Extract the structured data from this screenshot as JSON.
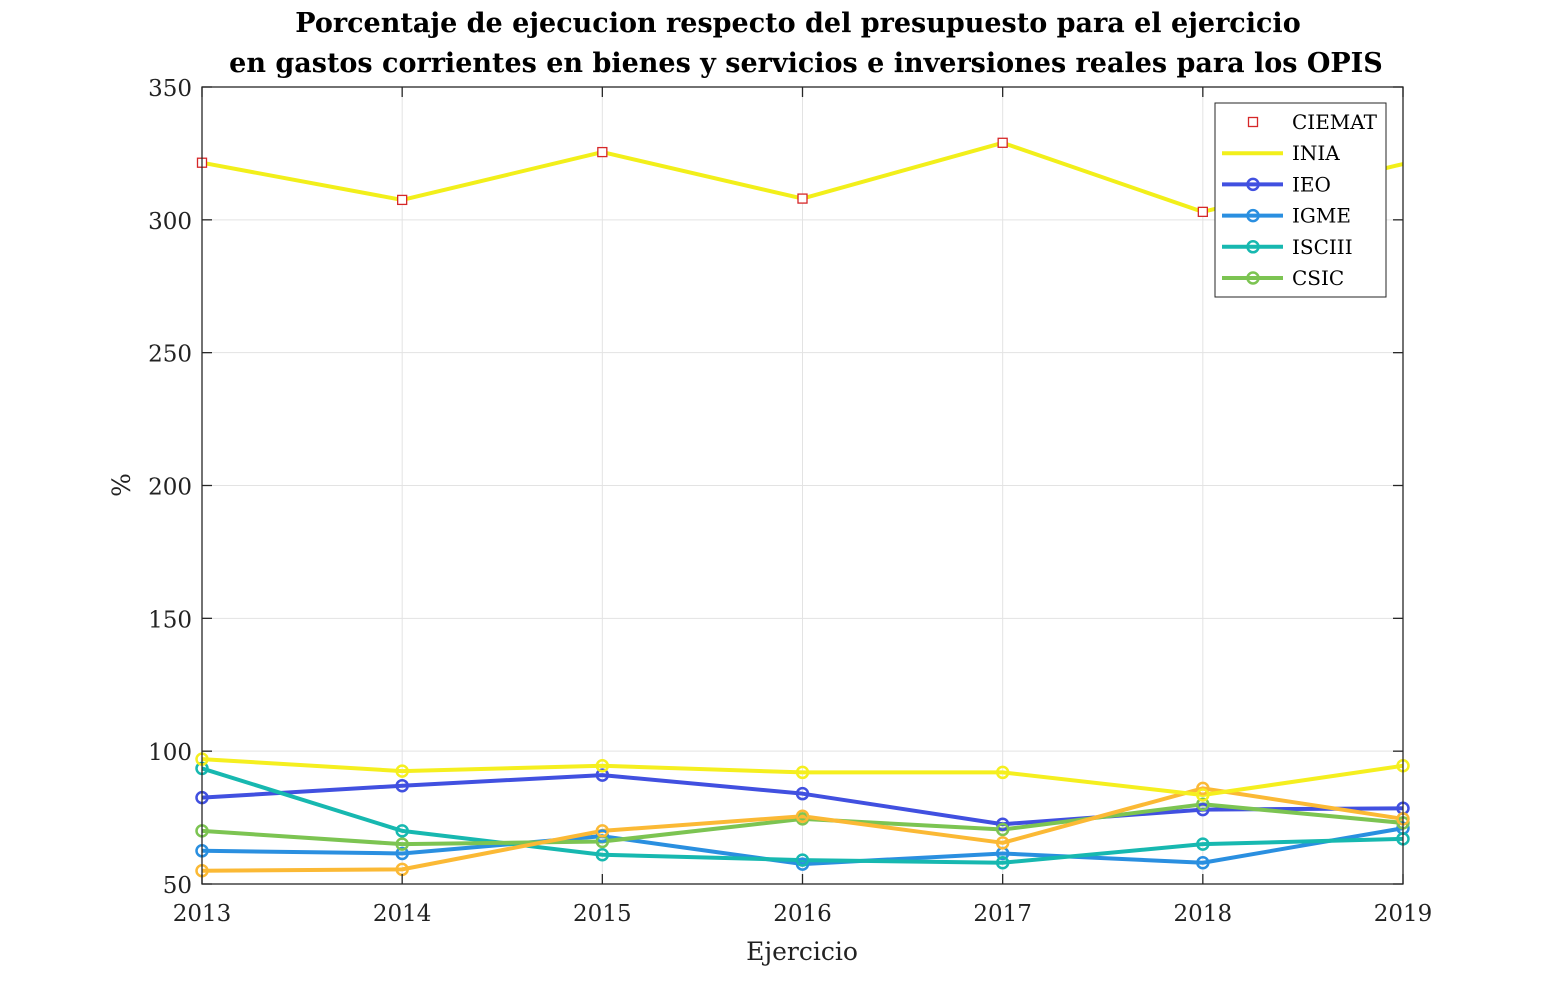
{
  "chart_data": {
    "type": "line",
    "title": [
      "Porcentaje de ejecucion respecto del presupuesto para el ejercicio",
      "en gastos corrientes en bienes y servicios e inversiones reales para los OPIS"
    ],
    "xlabel": "Ejercicio",
    "ylabel": "%",
    "x": [
      2013,
      2014,
      2015,
      2016,
      2017,
      2018,
      2019
    ],
    "xlim": [
      2013,
      2019
    ],
    "ylim": [
      50,
      350
    ],
    "yticks": [
      50,
      100,
      150,
      200,
      250,
      300,
      350
    ],
    "grid": true,
    "legend_position": "top-right",
    "series": [
      {
        "name": "CIEMAT",
        "color": "#d62728",
        "line": false,
        "marker": "square",
        "values": [
          321.5,
          307.5,
          325.5,
          308,
          329,
          303,
          null
        ],
        "legend": true
      },
      {
        "name": "INIA",
        "color": "#f2ef1a",
        "line": true,
        "marker": "none",
        "values": [
          321.5,
          307.5,
          325.5,
          308,
          329,
          303,
          321
        ],
        "legend": true
      },
      {
        "name": "IEO",
        "color": "#4150e0",
        "line": true,
        "marker": "circle",
        "values": [
          82.5,
          87,
          91,
          84,
          72.5,
          78,
          78.5
        ],
        "legend": true
      },
      {
        "name": "IGME",
        "color": "#2a8fe0",
        "line": true,
        "marker": "circle",
        "values": [
          62.5,
          61.5,
          68,
          57.5,
          61.5,
          58,
          71
        ],
        "legend": true
      },
      {
        "name": "ISCIII",
        "color": "#17b8b0",
        "line": true,
        "marker": "circle",
        "values": [
          93.5,
          70,
          61,
          59,
          58,
          65,
          67
        ],
        "legend": true
      },
      {
        "name": "CSIC",
        "color": "#7cc452",
        "line": true,
        "marker": "circle",
        "values": [
          70,
          65,
          66,
          74.5,
          70.5,
          80,
          73
        ],
        "legend": true
      },
      {
        "name": "",
        "color": "#fbb935",
        "line": true,
        "marker": "circle",
        "values": [
          55,
          55.5,
          70,
          75.5,
          65.5,
          86,
          74.5
        ],
        "legend": false
      },
      {
        "name": "",
        "color": "#f5ef1f",
        "line": true,
        "marker": "circle",
        "values": [
          97,
          92.5,
          94.5,
          92,
          92,
          83.5,
          94.5
        ],
        "legend": false
      }
    ]
  }
}
